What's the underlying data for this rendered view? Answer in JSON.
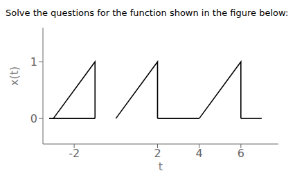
{
  "chart_data": {
    "type": "line",
    "title": "Solve the questions for the function shown in the figure below:",
    "xlabel": "t",
    "ylabel": "x(t)",
    "color": "#000000",
    "series": [
      {
        "x": [
          -3,
          -1,
          -1
        ],
        "values": [
          0,
          1,
          0
        ]
      },
      {
        "x": [
          0,
          2,
          2
        ],
        "values": [
          0,
          1,
          0
        ]
      },
      {
        "x": [
          4,
          6,
          6
        ],
        "values": [
          0,
          1,
          0
        ]
      },
      {
        "x": [
          -3.2,
          -1
        ],
        "values": [
          0,
          0
        ]
      },
      {
        "x": [
          2,
          4
        ],
        "values": [
          0,
          0
        ]
      },
      {
        "x": [
          6,
          7.0
        ],
        "values": [
          0,
          0
        ]
      }
    ],
    "xlim": [
      -3.5,
      7.8
    ],
    "ylim": [
      -0.45,
      1.6
    ],
    "xticks": [
      -2,
      2,
      4,
      6
    ],
    "yticks": [
      0,
      1
    ],
    "grid": false
  }
}
